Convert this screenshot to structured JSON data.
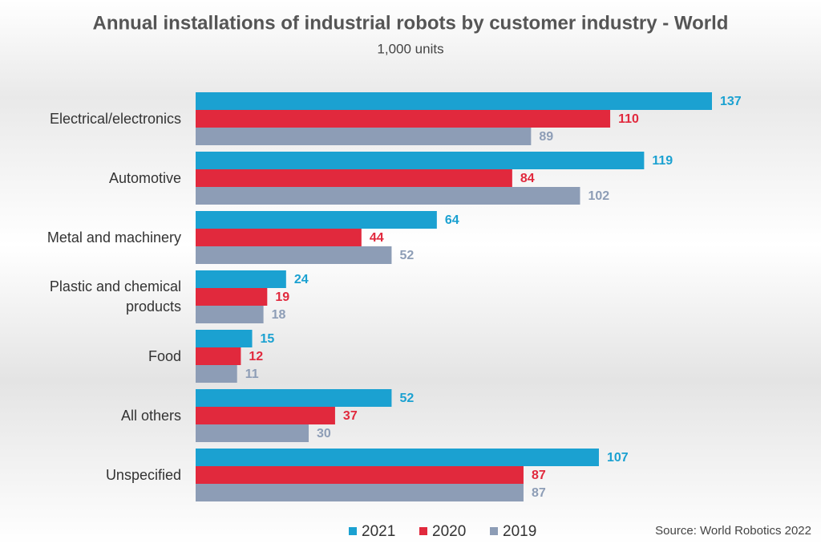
{
  "chart_data": {
    "type": "bar",
    "orientation": "horizontal",
    "title": "Annual installations of industrial robots by customer industry - World",
    "subtitle": "1,000 units",
    "categories": [
      "Electrical/electronics",
      "Automotive",
      "Metal and machinery",
      "Plastic and chemical products",
      "Food",
      "All others",
      "Unspecified"
    ],
    "series": [
      {
        "name": "2021",
        "color": "#1ba1d1",
        "values": [
          137,
          119,
          64,
          24,
          15,
          52,
          107
        ]
      },
      {
        "name": "2020",
        "color": "#e1293d",
        "values": [
          110,
          84,
          44,
          19,
          12,
          37,
          87
        ]
      },
      {
        "name": "2019",
        "color": "#8d9db6",
        "values": [
          89,
          102,
          52,
          18,
          11,
          30,
          87
        ]
      }
    ],
    "legend": "bottom",
    "source": "Source: World Robotics 2022"
  }
}
